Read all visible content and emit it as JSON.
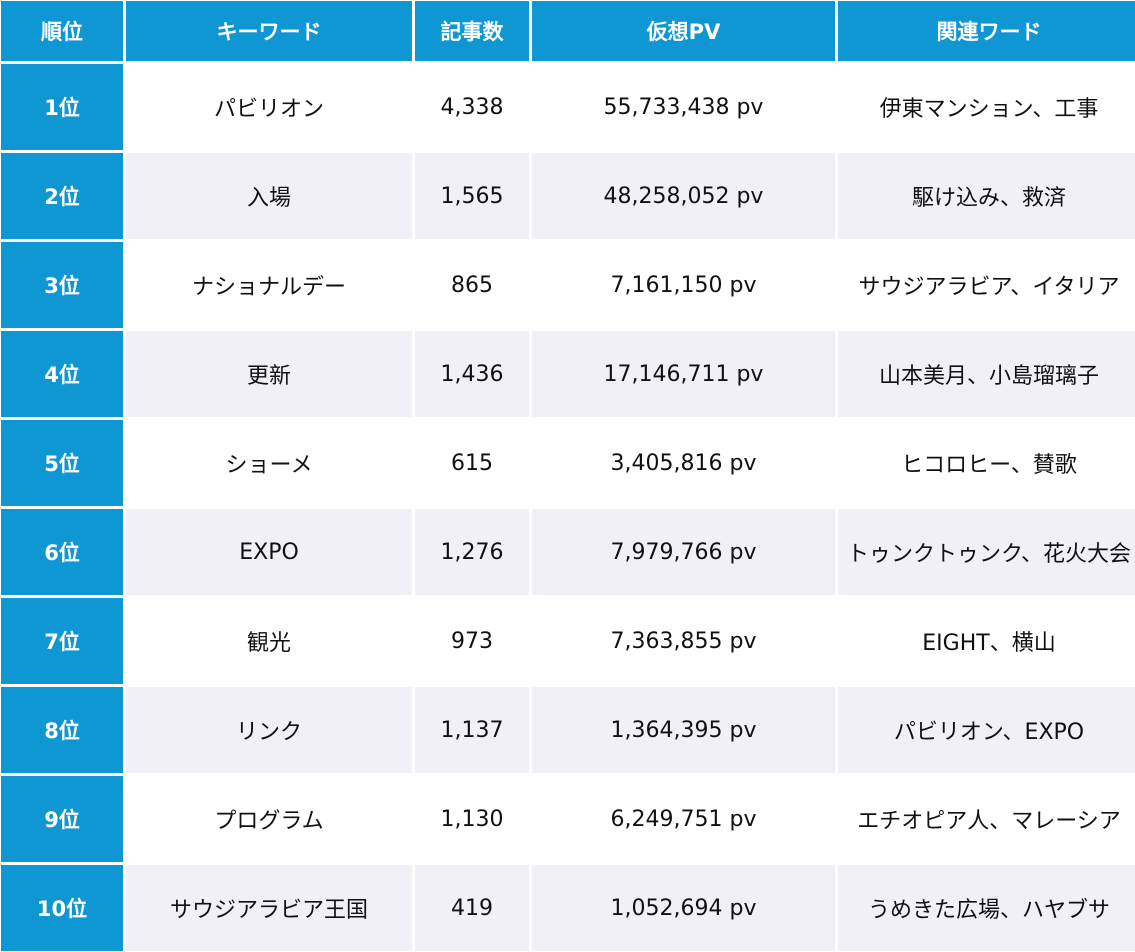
{
  "table": {
    "headers": [
      "順位",
      "キーワード",
      "記事数",
      "仮想PV",
      "関連ワード"
    ],
    "rows": [
      {
        "rank": "1位",
        "keyword": "パビリオン",
        "articles": "4,338",
        "pv": "55,733,438 pv",
        "related": "伊東マンション、工事"
      },
      {
        "rank": "2位",
        "keyword": "入場",
        "articles": "1,565",
        "pv": "48,258,052 pv",
        "related": "駆け込み、救済"
      },
      {
        "rank": "3位",
        "keyword": "ナショナルデー",
        "articles": "865",
        "pv": "7,161,150 pv",
        "related": "サウジアラビア、イタリア"
      },
      {
        "rank": "4位",
        "keyword": "更新",
        "articles": "1,436",
        "pv": "17,146,711 pv",
        "related": "山本美月、小島瑠璃子"
      },
      {
        "rank": "5位",
        "keyword": "ショーメ",
        "articles": "615",
        "pv": "3,405,816 pv",
        "related": "ヒコロヒー、賛歌"
      },
      {
        "rank": "6位",
        "keyword": "EXPO",
        "articles": "1,276",
        "pv": "7,979,766 pv",
        "related": "トゥンクトゥンク、花火大会"
      },
      {
        "rank": "7位",
        "keyword": "観光",
        "articles": "973",
        "pv": "7,363,855 pv",
        "related": "EIGHT、横山"
      },
      {
        "rank": "8位",
        "keyword": "リンク",
        "articles": "1,137",
        "pv": "1,364,395 pv",
        "related": "パビリオン、EXPO"
      },
      {
        "rank": "9位",
        "keyword": "プログラム",
        "articles": "1,130",
        "pv": "6,249,751 pv",
        "related": "エチオピア人、マレーシア"
      },
      {
        "rank": "10位",
        "keyword": "サウジアラビア王国",
        "articles": "419",
        "pv": "1,052,694 pv",
        "related": "うめきた広場、ハヤブサ"
      }
    ]
  },
  "colors": {
    "accent": "#0f97d4",
    "stripe": "#f0f0f6",
    "text": "#111111"
  }
}
